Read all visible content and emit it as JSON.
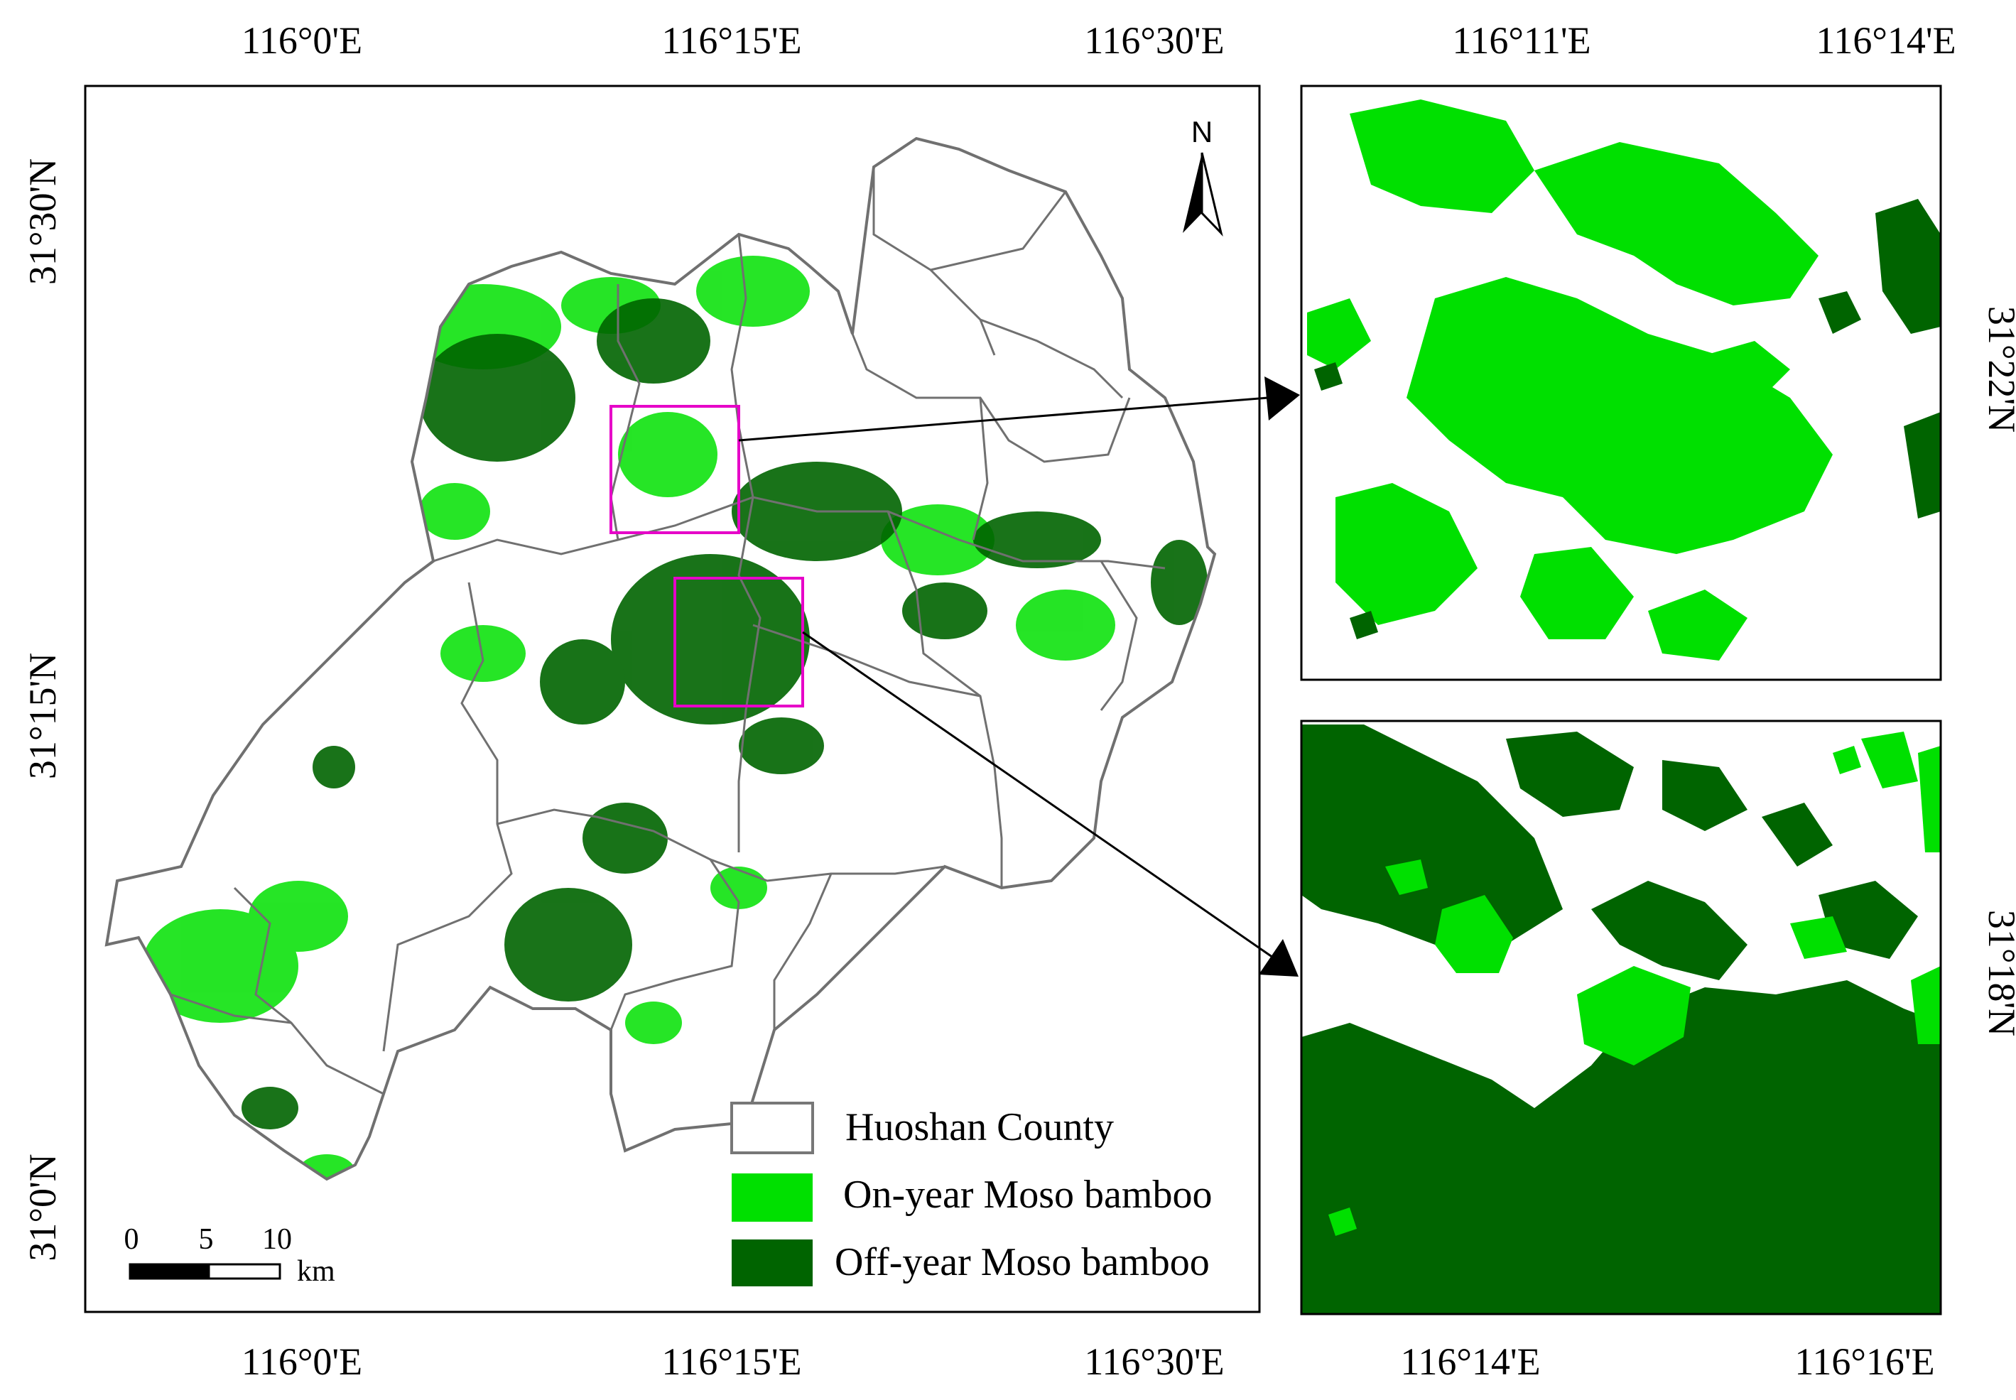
{
  "main_map": {
    "top_ticks": [
      "116°0'E",
      "116°15'E",
      "116°30'E"
    ],
    "bottom_ticks": [
      "116°0'E",
      "116°15'E",
      "116°30'E"
    ],
    "left_ticks": [
      "31°30'N",
      "31°15'N",
      "31°0'N"
    ],
    "north_label": "N",
    "scale_bar": {
      "ticks": [
        "0",
        "5",
        "10"
      ],
      "unit": "km"
    }
  },
  "legend": {
    "items": [
      {
        "label": "Huoshan County",
        "color": "#ffffff",
        "kind": "outline"
      },
      {
        "label": "On-year Moso bamboo",
        "color": "#00e000",
        "kind": "fill"
      },
      {
        "label": "Off-year Moso bamboo",
        "color": "#006400",
        "kind": "fill"
      }
    ]
  },
  "inset_top": {
    "top_ticks": [
      "116°11'E",
      "116°14'E"
    ],
    "right_tick": "31°22'N",
    "dominant": "On-year Moso bamboo"
  },
  "inset_bottom": {
    "bottom_ticks": [
      "116°14'E",
      "116°16'E"
    ],
    "right_tick": "31°18'N",
    "dominant": "Off-year Moso bamboo"
  },
  "colors": {
    "on_year": "#00e000",
    "off_year": "#006400",
    "boundary": "#707070",
    "highlight_box": "#e600c8"
  }
}
